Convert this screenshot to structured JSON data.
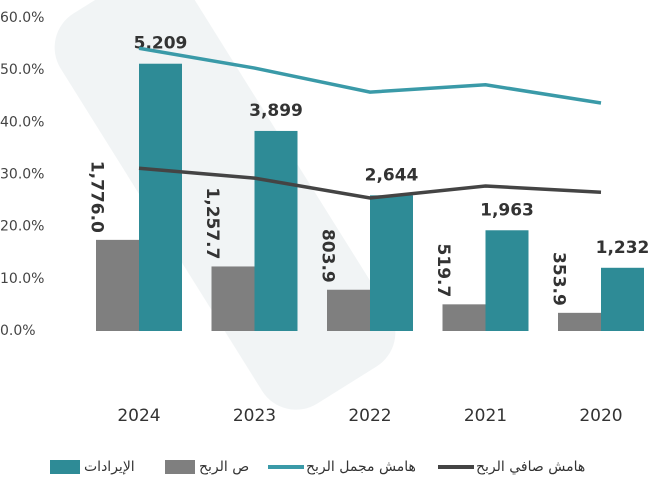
{
  "chart_data": {
    "type": "bar",
    "categories": [
      "2024",
      "2023",
      "2022",
      "2021",
      "2020"
    ],
    "ylim": [
      0,
      60
    ],
    "yticks": [
      {
        "value": 0,
        "label": "0.0%"
      },
      {
        "value": 10,
        "label": "10.0%"
      },
      {
        "value": 20,
        "label": "20.0%"
      },
      {
        "value": 30,
        "label": "30.0%"
      },
      {
        "value": 40,
        "label": "40.0%"
      },
      {
        "value": 50,
        "label": "50.0%"
      },
      {
        "value": 60,
        "label": "60.0%"
      }
    ],
    "y2lim": [
      0,
      6100
    ],
    "grid": false,
    "series": [
      {
        "name": "ص الربح",
        "type": "bar",
        "axis": "y2",
        "color": "#7f7f7f",
        "values": [
          1776,
          1257.7,
          803.9,
          519.7,
          353.9
        ],
        "value_labels": [
          "1,776.0",
          "1,257.7",
          "803.9",
          "519.7",
          "353.9"
        ]
      },
      {
        "name": "الإيرادات",
        "type": "bar",
        "axis": "y2",
        "color": "#2e8b96",
        "values": [
          5209,
          3899,
          2644,
          1963,
          1232
        ],
        "value_labels": [
          "5,209",
          "3,899",
          "2,644",
          "1,963",
          "1,232"
        ]
      },
      {
        "name": "هامش مجمل الربح",
        "type": "line",
        "color": "#3a9aa8",
        "values": [
          54.2,
          50.4,
          45.8,
          47.2,
          43.7
        ]
      },
      {
        "name": "هامش صافي الربح",
        "type": "line",
        "color": "#444444",
        "values": [
          31.2,
          29.3,
          25.5,
          27.8,
          26.6
        ]
      }
    ]
  }
}
